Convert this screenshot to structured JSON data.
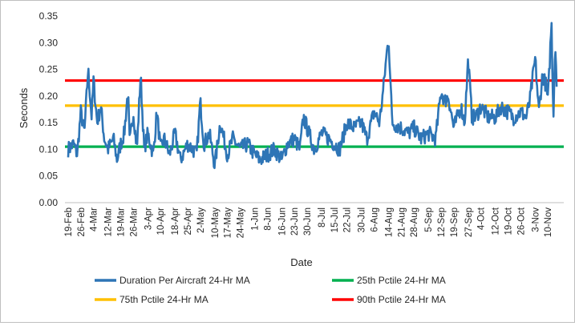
{
  "chart_data": {
    "type": "line",
    "title": "",
    "xlabel": "Date",
    "ylabel": "Seconds",
    "ylim": [
      0,
      0.35
    ],
    "y_ticks": [
      "0.00",
      "0.05",
      "0.10",
      "0.15",
      "0.20",
      "0.25",
      "0.30",
      "0.35"
    ],
    "x_ticks": [
      "19-Feb",
      "26-Feb",
      "4-Mar",
      "12-Mar",
      "19-Mar",
      "26-Mar",
      "3-Apr",
      "10-Apr",
      "18-Apr",
      "25-Apr",
      "2-May",
      "10-May",
      "17-May",
      "24-May",
      "1-Jun",
      "8-Jun",
      "16-Jun",
      "23-Jun",
      "30-Jun",
      "8-Jul",
      "15-Jul",
      "22-Jul",
      "30-Jul",
      "6-Aug",
      "14-Aug",
      "21-Aug",
      "28-Aug",
      "5-Sep",
      "12-Sep",
      "19-Sep",
      "27-Sep",
      "4-Oct",
      "12-Oct",
      "19-Oct",
      "26-Oct",
      "3-Nov",
      "10-Nov"
    ],
    "grid": false,
    "legend_position": "bottom",
    "series": [
      {
        "name": "Duration Per Aircraft 24-Hr MA",
        "color": "#2e75b6",
        "x": [
          "19-Feb",
          "22-Feb",
          "24-Feb",
          "26-Feb",
          "28-Feb",
          "1-Mar",
          "3-Mar",
          "4-Mar",
          "6-Mar",
          "8-Mar",
          "10-Mar",
          "12-Mar",
          "15-Mar",
          "17-Mar",
          "19-Mar",
          "21-Mar",
          "23-Mar",
          "24-Mar",
          "26-Mar",
          "28-Mar",
          "30-Mar",
          "1-Apr",
          "3-Apr",
          "6-Apr",
          "8-Apr",
          "10-Apr",
          "12-Apr",
          "15-Apr",
          "18-Apr",
          "21-Apr",
          "25-Apr",
          "28-Apr",
          "30-Apr",
          "2-May",
          "4-May",
          "7-May",
          "10-May",
          "13-May",
          "17-May",
          "20-May",
          "24-May",
          "28-May",
          "1-Jun",
          "4-Jun",
          "8-Jun",
          "12-Jun",
          "16-Jun",
          "19-Jun",
          "23-Jun",
          "26-Jun",
          "28-Jun",
          "30-Jun",
          "4-Jul",
          "8-Jul",
          "12-Jul",
          "15-Jul",
          "18-Jul",
          "22-Jul",
          "26-Jul",
          "30-Jul",
          "2-Aug",
          "6-Aug",
          "9-Aug",
          "11-Aug",
          "13-Aug",
          "14-Aug",
          "16-Aug",
          "21-Aug",
          "25-Aug",
          "28-Aug",
          "1-Sep",
          "5-Sep",
          "9-Sep",
          "12-Sep",
          "14-Sep",
          "16-Sep",
          "19-Sep",
          "23-Sep",
          "25-Sep",
          "27-Sep",
          "29-Sep",
          "1-Oct",
          "4-Oct",
          "8-Oct",
          "12-Oct",
          "15-Oct",
          "19-Oct",
          "22-Oct",
          "26-Oct",
          "29-Oct",
          "31-Oct",
          "3-Nov",
          "5-Nov",
          "7-Nov",
          "9-Nov",
          "10-Nov",
          "12-Nov",
          "13-Nov",
          "14-Nov",
          "15-Nov"
        ],
        "values": [
          0.1,
          0.11,
          0.09,
          0.17,
          0.13,
          0.25,
          0.16,
          0.23,
          0.15,
          0.18,
          0.12,
          0.1,
          0.12,
          0.08,
          0.11,
          0.13,
          0.21,
          0.11,
          0.17,
          0.1,
          0.24,
          0.1,
          0.13,
          0.09,
          0.17,
          0.1,
          0.12,
          0.09,
          0.13,
          0.08,
          0.11,
          0.1,
          0.09,
          0.19,
          0.11,
          0.13,
          0.07,
          0.15,
          0.09,
          0.12,
          0.1,
          0.11,
          0.09,
          0.08,
          0.09,
          0.1,
          0.08,
          0.11,
          0.12,
          0.1,
          0.16,
          0.14,
          0.1,
          0.13,
          0.12,
          0.11,
          0.1,
          0.15,
          0.14,
          0.15,
          0.12,
          0.17,
          0.15,
          0.21,
          0.28,
          0.31,
          0.15,
          0.14,
          0.13,
          0.14,
          0.12,
          0.13,
          0.12,
          0.21,
          0.19,
          0.2,
          0.14,
          0.18,
          0.15,
          0.27,
          0.16,
          0.16,
          0.18,
          0.16,
          0.16,
          0.18,
          0.17,
          0.16,
          0.17,
          0.16,
          0.19,
          0.27,
          0.17,
          0.24,
          0.22,
          0.19,
          0.34,
          0.16,
          0.3,
          0.22
        ]
      },
      {
        "name": "25th Pctile 24-Hr MA",
        "color": "#00b050",
        "values": [
          0.105
        ]
      },
      {
        "name": "75th Pctile 24-Hr MA",
        "color": "#ffc000",
        "values": [
          0.182
        ]
      },
      {
        "name": "90th Pctile 24-Hr MA",
        "color": "#ff0000",
        "values": [
          0.229
        ]
      }
    ]
  }
}
